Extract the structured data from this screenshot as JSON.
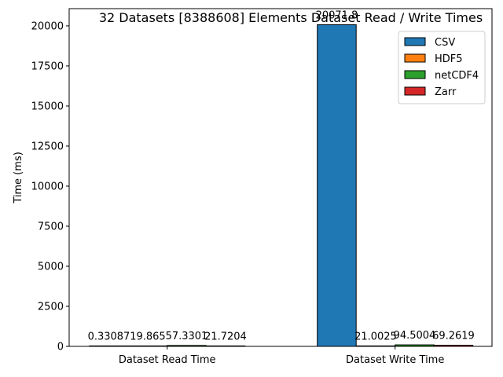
{
  "chart_data": {
    "type": "bar",
    "title": "32 Datasets [8388608] Elements Dataset Read / Write Times",
    "xlabel": "",
    "ylabel": "Time (ms)",
    "categories": [
      "Dataset Read Time",
      "Dataset Write Time"
    ],
    "series": [
      {
        "name": "CSV",
        "color": "#1f77b4",
        "values": [
          0.33087,
          20071.8
        ],
        "labels": [
          "0.33087",
          "20071.8"
        ]
      },
      {
        "name": "HDF5",
        "color": "#ff7f0e",
        "values": [
          19.865,
          21.0025
        ],
        "labels": [
          "19.865",
          "21.0025"
        ]
      },
      {
        "name": "netCDF4",
        "color": "#2ca02c",
        "values": [
          57.3301,
          94.5004
        ],
        "labels": [
          "57.3301",
          "94.5004"
        ]
      },
      {
        "name": "Zarr",
        "color": "#d62728",
        "values": [
          21.7204,
          69.2619
        ],
        "labels": [
          "21.7204",
          "69.2619"
        ]
      }
    ],
    "ylim": [
      0,
      21075.39
    ],
    "yticks": [
      0,
      2500,
      5000,
      7500,
      10000,
      12500,
      15000,
      17500,
      20000
    ],
    "legend": "top-right",
    "grid": false
  }
}
